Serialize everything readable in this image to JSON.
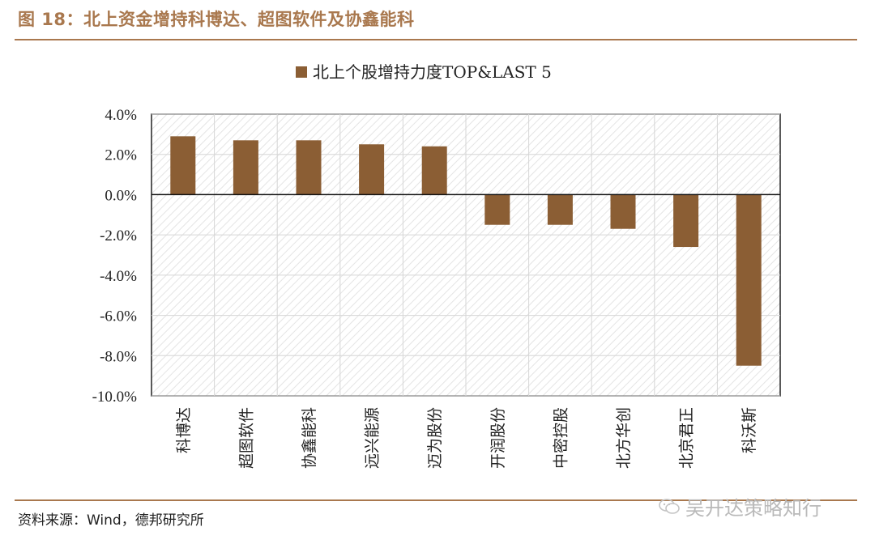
{
  "header": {
    "title": "图 18：北上资金增持科博达、超图软件及协鑫能科"
  },
  "footer": {
    "source": "资料来源：Wind，德邦研究所",
    "watermark": "吴开达策略知行"
  },
  "colors": {
    "accent": "#a9784e",
    "bar": "#8b5e34"
  },
  "chart_data": {
    "type": "bar",
    "legend": [
      "北上个股增持力度TOP&LAST 5"
    ],
    "legend_position": "top-center",
    "categories": [
      "科博达",
      "超图软件",
      "协鑫能科",
      "远兴能源",
      "迈为股份",
      "开润股份",
      "中密控股",
      "北方华创",
      "北京君正",
      "科沃斯"
    ],
    "values": [
      2.9,
      2.7,
      2.7,
      2.5,
      2.4,
      -1.5,
      -1.5,
      -1.7,
      -2.6,
      -8.5
    ],
    "yticks": [
      "4.0%",
      "2.0%",
      "0.0%",
      "-2.0%",
      "-4.0%",
      "-6.0%",
      "-8.0%",
      "-10.0%"
    ],
    "ylim": [
      -10,
      4
    ],
    "unit": "%",
    "grid": true
  }
}
